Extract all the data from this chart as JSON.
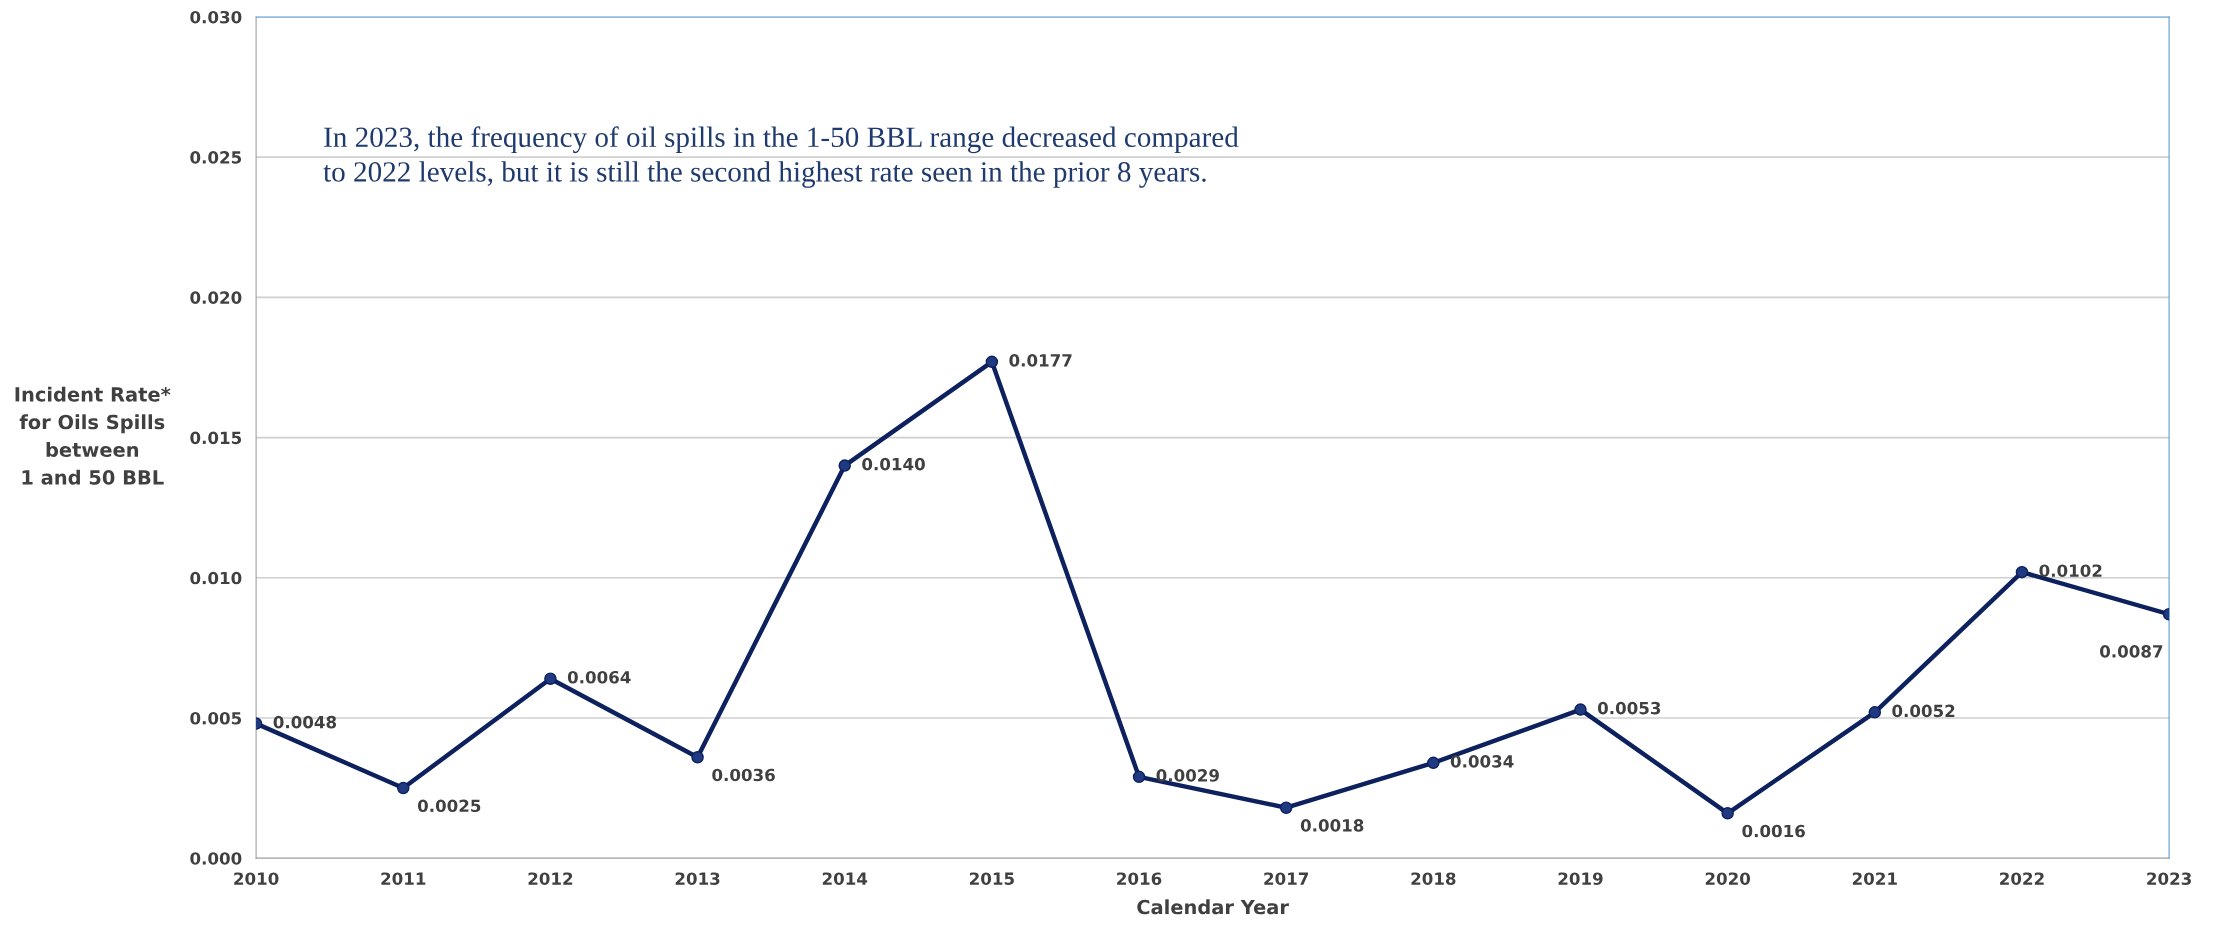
{
  "chart_data": {
    "type": "line",
    "xlabel": "Calendar Year",
    "ylabel": "Incident Rate*\nfor Oils Spills\nbetween\n1 and 50 BBL",
    "categories": [
      "2010",
      "2011",
      "2012",
      "2013",
      "2014",
      "2015",
      "2016",
      "2017",
      "2018",
      "2019",
      "2020",
      "2021",
      "2022",
      "2023"
    ],
    "series": [
      {
        "color": "#0d215e",
        "values": [
          0.0048,
          0.0025,
          0.0064,
          0.0036,
          0.014,
          0.0177,
          0.0029,
          0.0018,
          0.0034,
          0.0053,
          0.0016,
          0.0052,
          0.0102,
          0.0087
        ],
        "value_labels": [
          "0.0048",
          "0.0025",
          "0.0064",
          "0.0036",
          "0.0140",
          "0.0177",
          "0.0029",
          "0.0018",
          "0.0034",
          "0.0053",
          "0.0016",
          "0.0052",
          "0.0102",
          "0.0087"
        ]
      }
    ],
    "ylim": [
      0,
      0.03
    ],
    "yticks": [
      {
        "value": 0,
        "label": "0.000"
      },
      {
        "value": 0.005,
        "label": "0.005"
      },
      {
        "value": 0.01,
        "label": "0.010"
      },
      {
        "value": 0.015,
        "label": "0.015"
      },
      {
        "value": 0.02,
        "label": "0.020"
      },
      {
        "value": 0.025,
        "label": "0.025"
      },
      {
        "value": 0.03,
        "label": "0.030"
      }
    ],
    "annotations": [
      "In 2023, the frequency of oil spills in the 1-50 BBL range decreased compared\nto 2022 levels, but it is still the second highest rate seen in the prior 8 years."
    ],
    "grid": "y",
    "marker": "circle",
    "line_style": "solid",
    "legend": false
  }
}
